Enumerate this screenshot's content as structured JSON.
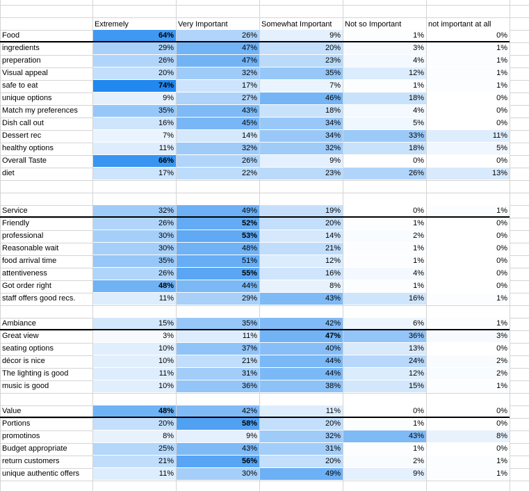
{
  "headers": [
    "",
    "Extremely",
    "Very Important",
    "Somewhat Important",
    "Not so Important",
    "not important at all"
  ],
  "colors": {
    "scale_low": "#ffffff",
    "scale_high": "#1e86f0",
    "gridline": "#d4d4d4",
    "section_rule": "#000000"
  },
  "sections": [
    {
      "rows": [
        {
          "label": "Food",
          "values": [
            "64%",
            "26%",
            "9%",
            "1%",
            "0%"
          ],
          "bold": [
            0
          ]
        },
        {
          "label": "ingredients",
          "values": [
            "29%",
            "47%",
            "20%",
            "3%",
            "1%"
          ]
        },
        {
          "label": "preperation",
          "values": [
            "26%",
            "47%",
            "23%",
            "4%",
            "1%"
          ]
        },
        {
          "label": "Visual appeal",
          "values": [
            "20%",
            "32%",
            "35%",
            "12%",
            "1%"
          ]
        },
        {
          "label": "safe to eat",
          "values": [
            "74%",
            "17%",
            "7%",
            "1%",
            "1%"
          ],
          "bold": [
            0
          ]
        },
        {
          "label": "unique options",
          "values": [
            "9%",
            "27%",
            "46%",
            "18%",
            "0%"
          ]
        },
        {
          "label": "Match my preferences",
          "values": [
            "35%",
            "43%",
            "18%",
            "4%",
            "0%"
          ]
        },
        {
          "label": "Dish call out",
          "values": [
            "16%",
            "45%",
            "34%",
            "5%",
            "0%"
          ]
        },
        {
          "label": "Dessert rec",
          "values": [
            "7%",
            "14%",
            "34%",
            "33%",
            "11%"
          ]
        },
        {
          "label": "healthy options",
          "values": [
            "11%",
            "32%",
            "32%",
            "18%",
            "5%"
          ]
        },
        {
          "label": "Overall Taste",
          "values": [
            "66%",
            "26%",
            "9%",
            "0%",
            "0%"
          ],
          "bold": [
            0
          ]
        },
        {
          "label": "diet",
          "values": [
            "17%",
            "22%",
            "23%",
            "26%",
            "13%"
          ]
        }
      ]
    },
    {
      "rows": [
        {
          "label": "Service",
          "values": [
            "32%",
            "49%",
            "19%",
            "0%",
            "1%"
          ]
        },
        {
          "label": "Friendly",
          "values": [
            "26%",
            "52%",
            "20%",
            "1%",
            "0%"
          ],
          "bold": [
            1
          ]
        },
        {
          "label": "professional",
          "values": [
            "30%",
            "53%",
            "14%",
            "2%",
            "0%"
          ],
          "bold": [
            1
          ]
        },
        {
          "label": "Reasonable wait",
          "values": [
            "30%",
            "48%",
            "21%",
            "1%",
            "0%"
          ]
        },
        {
          "label": "food arrival time",
          "values": [
            "35%",
            "51%",
            "12%",
            "1%",
            "0%"
          ]
        },
        {
          "label": "attentiveness",
          "values": [
            "26%",
            "55%",
            "16%",
            "4%",
            "0%"
          ],
          "bold": [
            1
          ]
        },
        {
          "label": "Got order right",
          "values": [
            "48%",
            "44%",
            "8%",
            "1%",
            "0%"
          ],
          "bold": [
            0
          ]
        },
        {
          "label": "staff offers good recs.",
          "values": [
            "11%",
            "29%",
            "43%",
            "16%",
            "1%"
          ]
        }
      ]
    },
    {
      "rows": [
        {
          "label": "Ambiance",
          "values": [
            "15%",
            "35%",
            "42%",
            "6%",
            "1%"
          ]
        },
        {
          "label": "Great view",
          "values": [
            "3%",
            "11%",
            "47%",
            "36%",
            "3%"
          ],
          "bold": [
            2
          ]
        },
        {
          "label": "seating options",
          "values": [
            "10%",
            "37%",
            "40%",
            "13%",
            "0%"
          ]
        },
        {
          "label": "décor is nice",
          "values": [
            "10%",
            "21%",
            "44%",
            "24%",
            "2%"
          ]
        },
        {
          "label": "The lighting is good",
          "values": [
            "11%",
            "31%",
            "44%",
            "12%",
            "2%"
          ]
        },
        {
          "label": "music is good",
          "values": [
            "10%",
            "36%",
            "38%",
            "15%",
            "1%"
          ]
        }
      ]
    },
    {
      "rows": [
        {
          "label": "Value",
          "values": [
            "48%",
            "42%",
            "11%",
            "0%",
            "0%"
          ],
          "bold": [
            0
          ]
        },
        {
          "label": "Portions",
          "values": [
            "20%",
            "58%",
            "20%",
            "1%",
            "0%"
          ],
          "bold": [
            1
          ]
        },
        {
          "label": "promotinos",
          "values": [
            "8%",
            "9%",
            "32%",
            "43%",
            "8%"
          ]
        },
        {
          "label": "Budget appropriate",
          "values": [
            "25%",
            "43%",
            "31%",
            "1%",
            "0%"
          ]
        },
        {
          "label": "return customers",
          "values": [
            "21%",
            "56%",
            "20%",
            "2%",
            "1%"
          ],
          "bold": [
            1
          ]
        },
        {
          "label": "unique authentic offers",
          "values": [
            "11%",
            "30%",
            "49%",
            "9%",
            "1%"
          ]
        }
      ]
    }
  ]
}
